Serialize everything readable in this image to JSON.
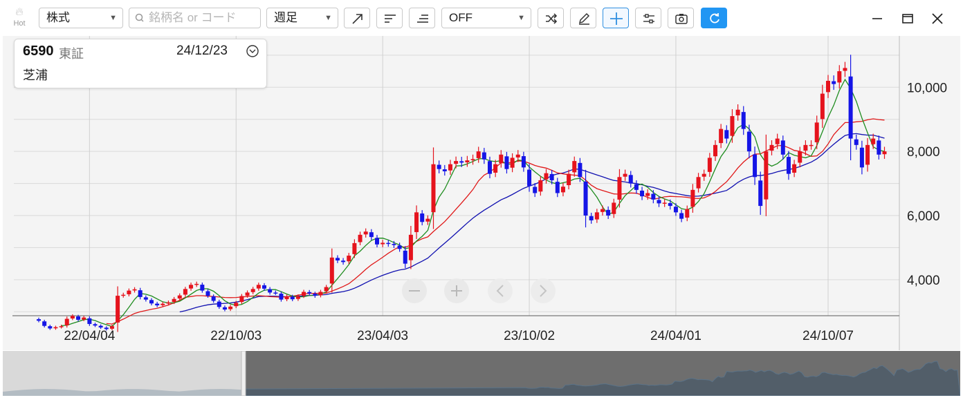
{
  "toolbar": {
    "hot_label": "Hot",
    "type_select": "株式",
    "search_placeholder": "銘柄名 or コード",
    "period_select": "週足",
    "compare_select": "OFF"
  },
  "info": {
    "code": "6590",
    "market": "東証",
    "date": "24/12/23",
    "name": "芝浦"
  },
  "colors": {
    "up": "#e5131d",
    "down": "#1515e6",
    "ma_short": "#1e8c1e",
    "ma_mid": "#e01818",
    "ma_long": "#1010b0",
    "accent": "#2196f3"
  },
  "chart_data": {
    "type": "candlestick",
    "y_ticks": [
      "10,000",
      "8,000",
      "6,000",
      "4,000"
    ],
    "y_tick_values": [
      10000,
      8000,
      6000,
      4000
    ],
    "ylim": [
      1800,
      11600
    ],
    "x_ticks": [
      "22/04/04",
      "22/10/03",
      "23/04/03",
      "23/10/02",
      "24/04/01",
      "24/10/07"
    ],
    "x_tick_week_index": [
      9,
      35,
      61,
      87,
      113,
      140
    ],
    "grid": true,
    "weekly_close": [
      2720,
      2560,
      2480,
      2520,
      2550,
      2780,
      2870,
      2750,
      2820,
      2620,
      2570,
      2510,
      2460,
      2550,
      3500,
      3530,
      3660,
      3700,
      3460,
      3380,
      3260,
      3200,
      3250,
      3290,
      3400,
      3510,
      3710,
      3840,
      3870,
      3660,
      3500,
      3340,
      3150,
      3070,
      3160,
      3280,
      3490,
      3600,
      3710,
      3840,
      3720,
      3600,
      3590,
      3380,
      3480,
      3390,
      3480,
      3620,
      3570,
      3500,
      3620,
      3770,
      4690,
      4600,
      4550,
      4750,
      5140,
      5400,
      5500,
      5330,
      5100,
      5150,
      5120,
      5080,
      4960,
      4500,
      5400,
      6100,
      5800,
      5900,
      7600,
      7450,
      7380,
      7600,
      7700,
      7650,
      7720,
      7760,
      8000,
      7750,
      7300,
      7600,
      7900,
      7450,
      7800,
      7900,
      7500,
      6920,
      6700,
      7100,
      7320,
      7100,
      6700,
      6900,
      7300,
      7700,
      7200,
      6000,
      5850,
      6100,
      6200,
      6000,
      6400,
      7200,
      7300,
      7000,
      6800,
      6600,
      6700,
      6500,
      6380,
      6400,
      6300,
      6100,
      5900,
      6200,
      6800,
      7200,
      7300,
      7800,
      8200,
      8700,
      8400,
      9100,
      9300,
      8700,
      8000,
      7200,
      6300,
      8000,
      8200,
      8400,
      7900,
      7300,
      7600,
      8000,
      8200,
      8200,
      8900,
      9800,
      10200,
      10100,
      10500,
      10600,
      8400,
      8200,
      7500,
      8200,
      8400,
      7900,
      8000
    ],
    "ma_short_weeks": 5,
    "ma_mid_weeks": 13,
    "ma_long_weeks": 26
  }
}
